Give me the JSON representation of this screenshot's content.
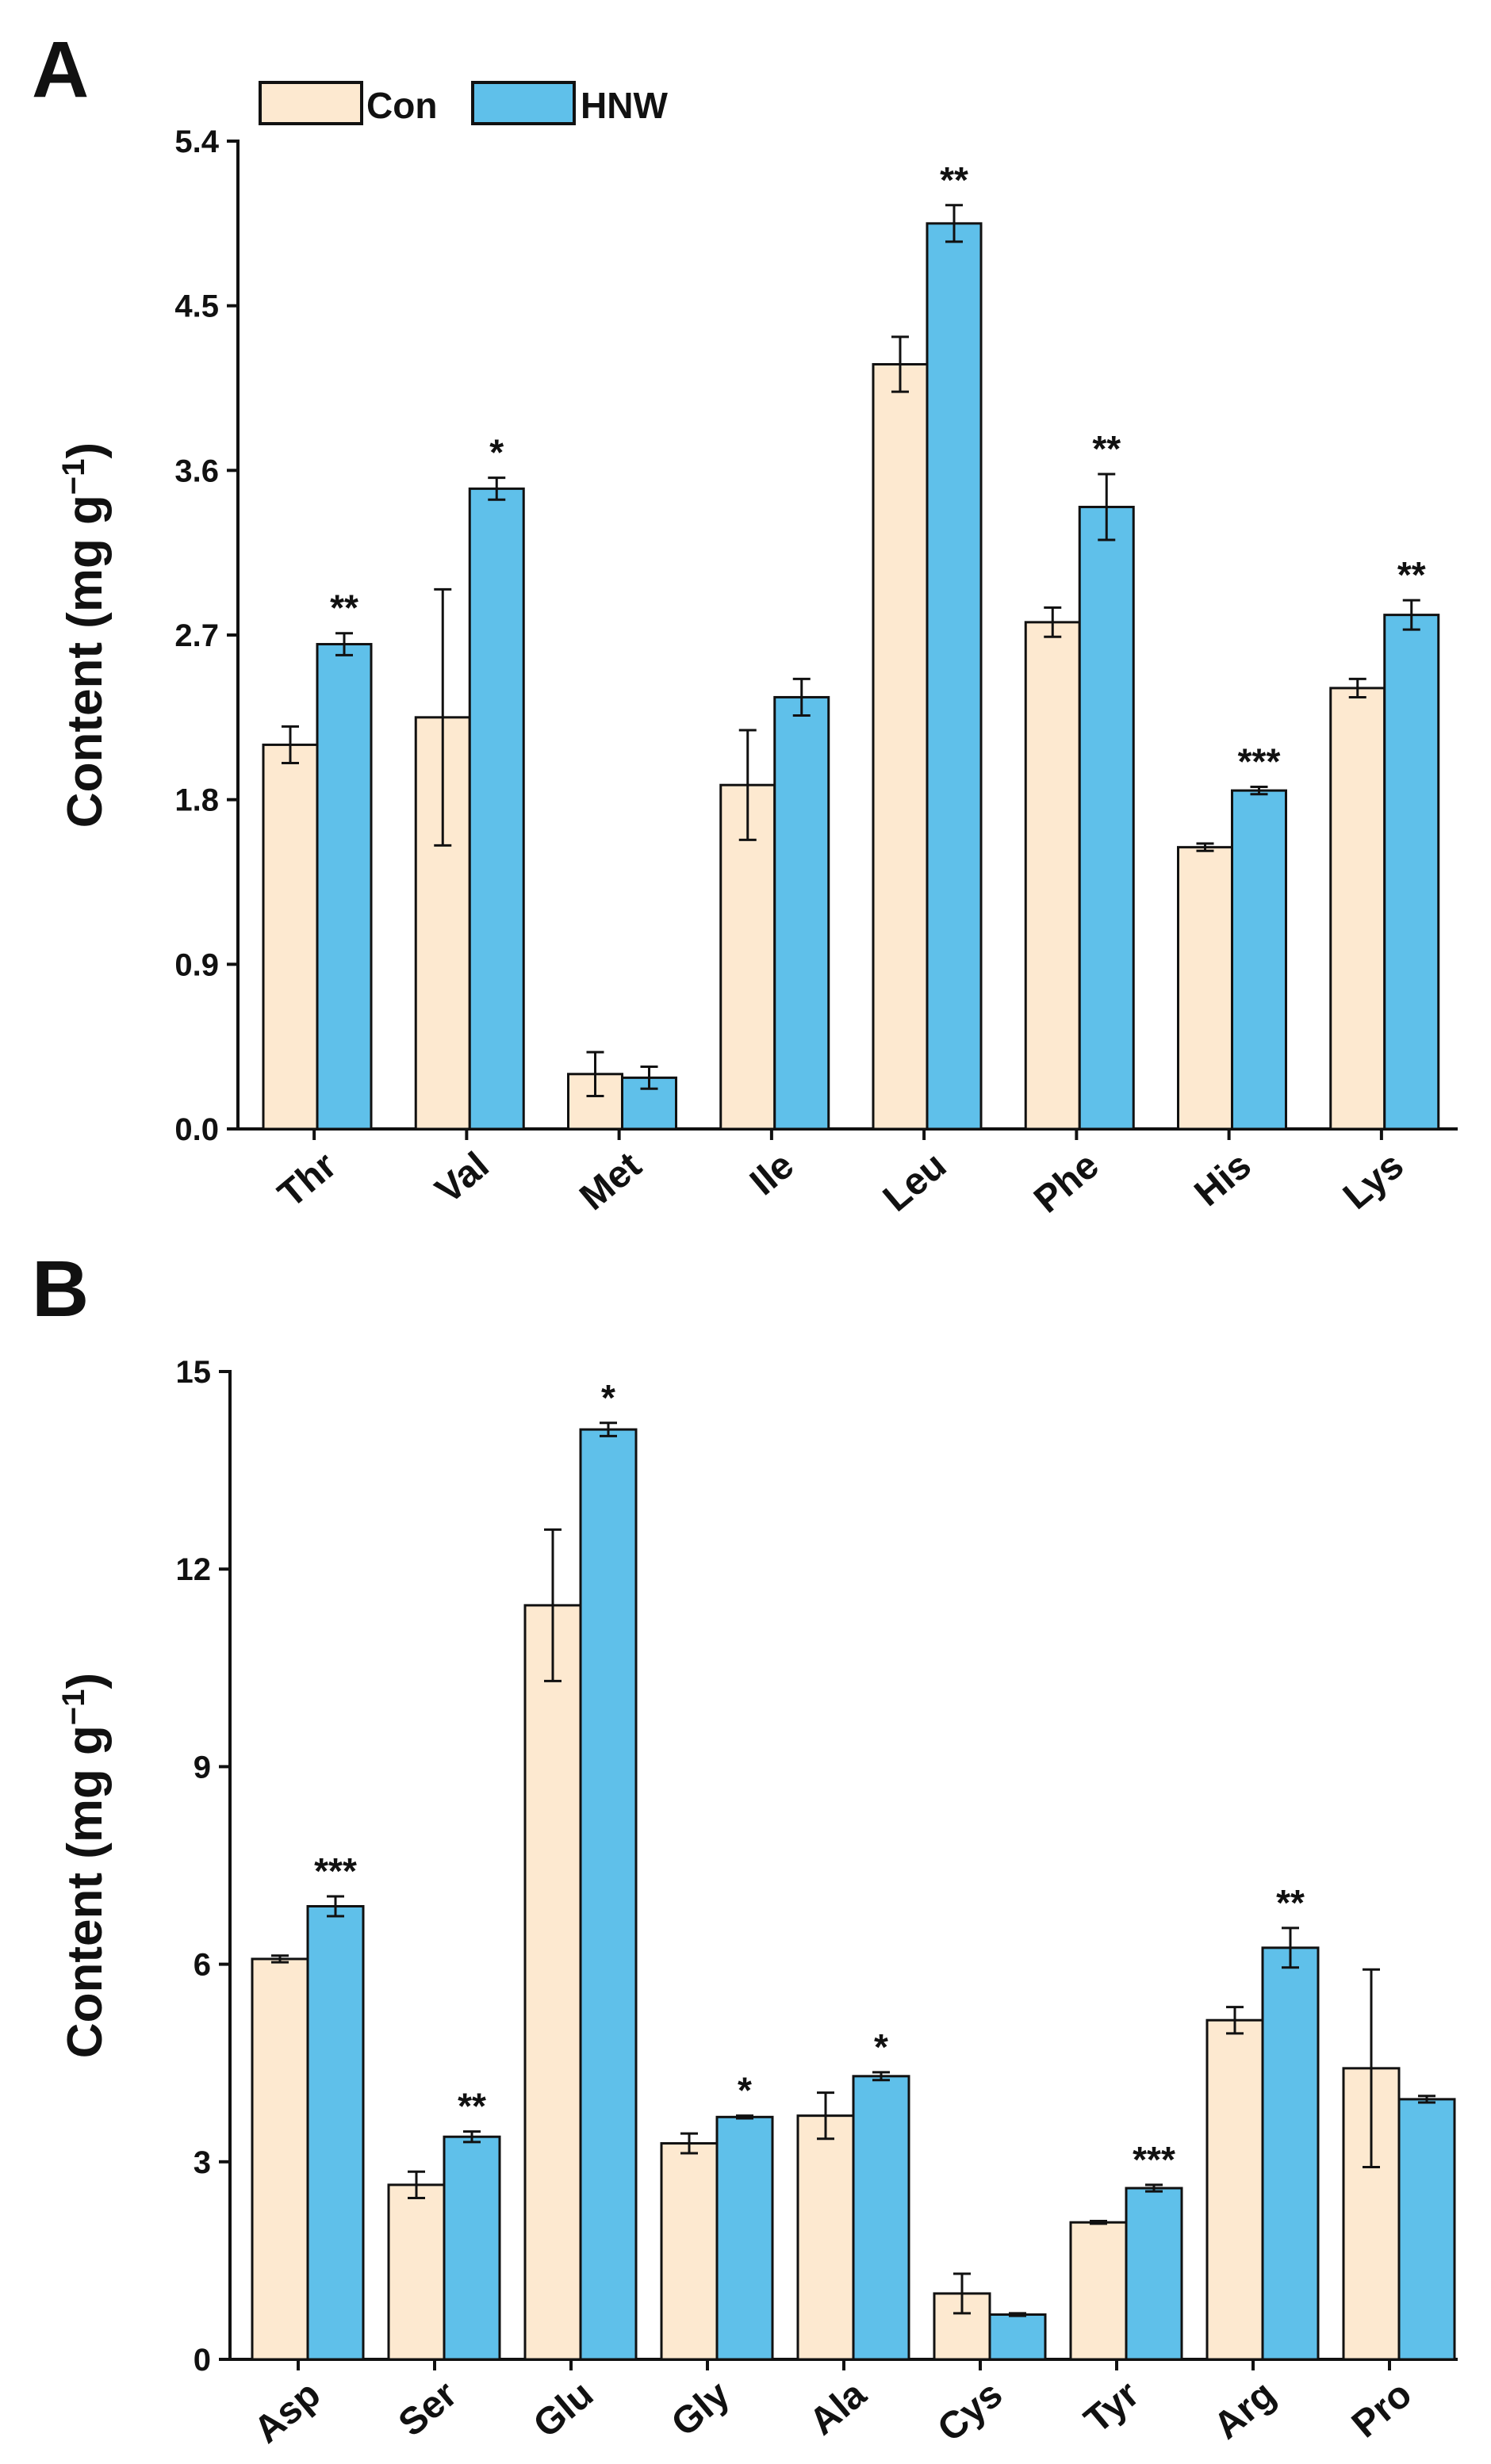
{
  "series_colors": {
    "Con": "#fde9d0",
    "HNW": "#5fc0ea"
  },
  "legend": [
    "Con",
    "HNW"
  ],
  "chart_data": [
    {
      "panel": "A",
      "type": "bar",
      "ylabel": "Content (mg g",
      "ylabel_sup": "−1",
      "ylabel_close": ")",
      "ylim": [
        0,
        5.4
      ],
      "yticks": [
        "0.0",
        "0.9",
        "1.8",
        "2.7",
        "3.6",
        "4.5",
        "5.4"
      ],
      "categories": [
        "Thr",
        "Val",
        "Met",
        "Ile",
        "Leu",
        "Phe",
        "His",
        "Lys"
      ],
      "series": [
        {
          "name": "Con",
          "values": [
            2.1,
            2.25,
            0.3,
            1.88,
            4.18,
            2.77,
            1.54,
            2.41
          ],
          "errors": [
            0.1,
            0.7,
            0.12,
            0.3,
            0.15,
            0.08,
            0.02,
            0.05
          ]
        },
        {
          "name": "HNW",
          "values": [
            2.65,
            3.5,
            0.28,
            2.36,
            4.95,
            3.4,
            1.85,
            2.81
          ],
          "errors": [
            0.06,
            0.06,
            0.06,
            0.1,
            0.1,
            0.18,
            0.02,
            0.08
          ]
        }
      ],
      "significance": [
        "**",
        "*",
        "",
        "",
        "**",
        "**",
        "***",
        "**"
      ]
    },
    {
      "panel": "B",
      "type": "bar",
      "ylabel": "Content (mg g",
      "ylabel_sup": "−1",
      "ylabel_close": ")",
      "ylim": [
        0,
        15
      ],
      "yticks": [
        "0",
        "3",
        "6",
        "9",
        "12",
        "15"
      ],
      "categories": [
        "Asp",
        "Ser",
        "Glu",
        "Gly",
        "Ala",
        "Cys",
        "Tyr",
        "Arg",
        "Pro"
      ],
      "series": [
        {
          "name": "Con",
          "values": [
            6.08,
            2.65,
            11.45,
            3.28,
            3.7,
            1.0,
            2.08,
            5.15,
            4.42
          ],
          "errors": [
            0.05,
            0.2,
            1.15,
            0.15,
            0.35,
            0.3,
            0.02,
            0.2,
            1.5
          ]
        },
        {
          "name": "HNW",
          "values": [
            6.88,
            3.38,
            14.12,
            3.68,
            4.3,
            0.68,
            2.6,
            6.25,
            3.95
          ],
          "errors": [
            0.15,
            0.08,
            0.1,
            0.02,
            0.06,
            0.02,
            0.05,
            0.3,
            0.05
          ]
        }
      ],
      "significance": [
        "***",
        "**",
        "*",
        "*",
        "*",
        "",
        "***",
        "**",
        ""
      ]
    }
  ]
}
